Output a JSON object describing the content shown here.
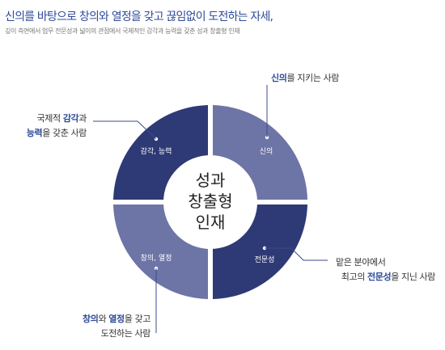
{
  "heading": "신의를 바탕으로 창의와 열정을 갖고 끊임없이 도전하는 자세,",
  "subheading": "깊이 측면에서 업무 전문성과 넓이의 관점에서 국제적인 감각과 능력을 갖춘 성과 창출형 인재",
  "center": {
    "line1": "성과",
    "line2": "창출형",
    "line3": "인재"
  },
  "segments": {
    "top_left": "감각, 능력",
    "top_right": "신의",
    "bottom_left": "창의, 열정",
    "bottom_right": "전문성"
  },
  "callouts": {
    "top_right": {
      "hl": "신의",
      "rest": "를 지키는 사람"
    },
    "top_left": {
      "l1_pre": "국제적 ",
      "l1_hl": "감각",
      "l1_post": "과",
      "l2_hl": "능력",
      "l2_post": "을 갖춘 사람"
    },
    "bottom_right": {
      "l1": "맡은 분야에서",
      "l2_pre": "최고의 ",
      "l2_hl": "전문성",
      "l2_post": "을 지닌 사람"
    },
    "bottom_left": {
      "l1_hl1": "창의",
      "l1_mid": "와 ",
      "l1_hl2": "열정",
      "l1_post": "을 갖고",
      "l2": "도전하는 사람"
    }
  },
  "colors": {
    "dark_navy": "#2e3a75",
    "medium_blue": "#6d75a6",
    "accent_text": "#2e4b9a",
    "center_text": "#222222"
  }
}
